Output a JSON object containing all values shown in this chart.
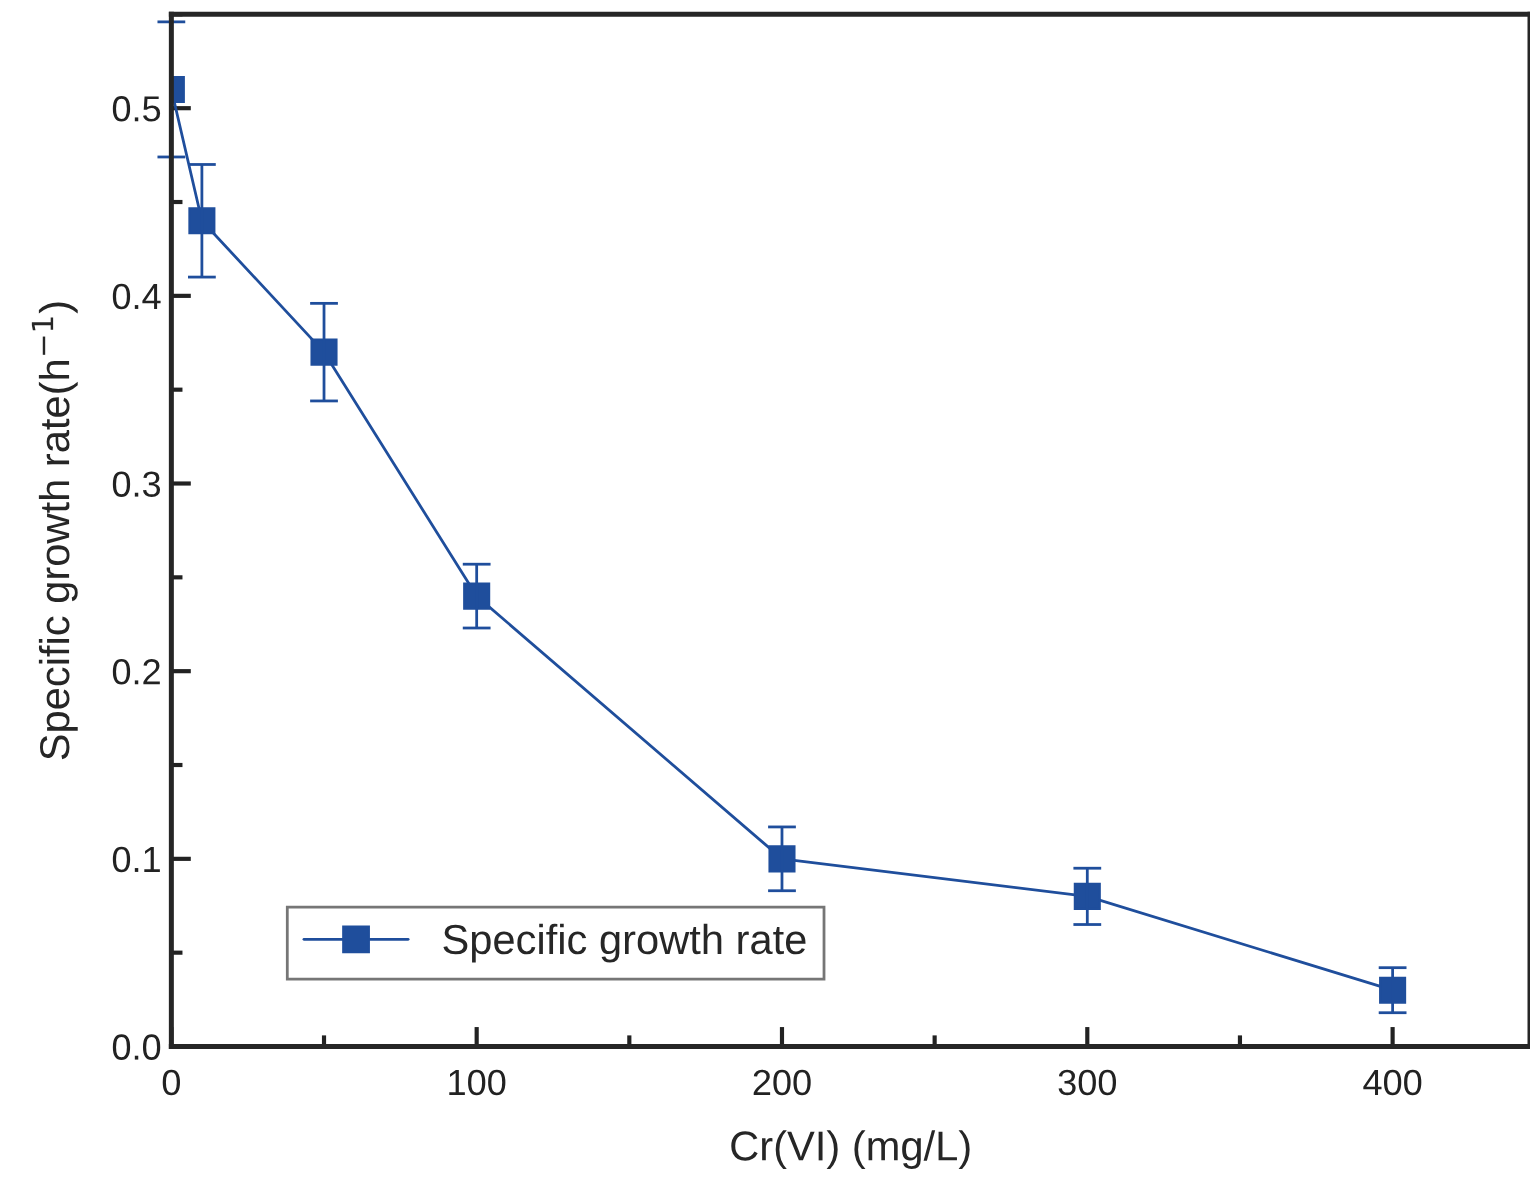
{
  "chart_data": {
    "type": "line",
    "xlabel": "Cr(VI) (mg/L)",
    "ylabel": "Specific growth rate(h$^{−1}$)",
    "x": [
      0,
      10,
      50,
      100,
      200,
      300,
      400
    ],
    "series": [
      {
        "name": "Specific growth rate",
        "color": "#1f4e9c",
        "values": [
          0.51,
          0.44,
          0.37,
          0.24,
          0.1,
          0.08,
          0.03
        ],
        "errors": [
          0.036,
          0.03,
          0.026,
          0.017,
          0.017,
          0.015,
          0.012
        ]
      }
    ],
    "xlim": [
      0,
      445
    ],
    "ylim": [
      0,
      0.55
    ],
    "xticks": [
      0,
      100,
      200,
      300,
      400
    ],
    "yticks": [
      {
        "value": 0,
        "label": "0.0"
      },
      0.1,
      0.2,
      0.3,
      0.4,
      0.5
    ],
    "marker": "square",
    "line_style": "solid",
    "legend": "bottom left",
    "grid": false
  }
}
